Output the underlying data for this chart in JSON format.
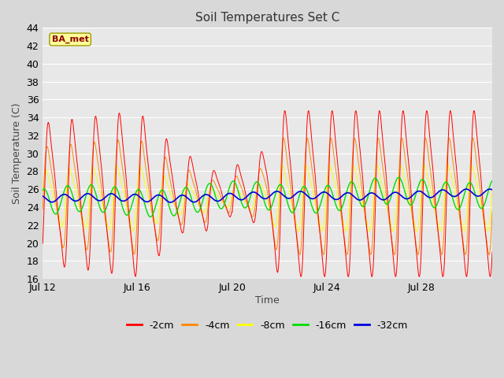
{
  "title": "Soil Temperatures Set C",
  "xlabel": "Time",
  "ylabel": "Soil Temperature (C)",
  "ylim": [
    16,
    44
  ],
  "yticks": [
    16,
    18,
    20,
    22,
    24,
    26,
    28,
    30,
    32,
    34,
    36,
    38,
    40,
    42,
    44
  ],
  "bg_color": "#d8d8d8",
  "plot_bg": "#e8e8e8",
  "colors": {
    "-2cm": "#ff0000",
    "-4cm": "#ff8800",
    "-8cm": "#ffff00",
    "-16cm": "#00dd00",
    "-32cm": "#0000dd"
  },
  "legend_labels": [
    "-2cm",
    "-4cm",
    "-8cm",
    "-16cm",
    "-32cm"
  ],
  "annotation_text": "BA_met",
  "annotation_color": "#8b0000",
  "annotation_bg": "#ffff99",
  "x_tick_labels": [
    "Jul 12",
    "Jul 16",
    "Jul 20",
    "Jul 24",
    "Jul 28"
  ],
  "total_days": 19,
  "points_per_day": 48
}
